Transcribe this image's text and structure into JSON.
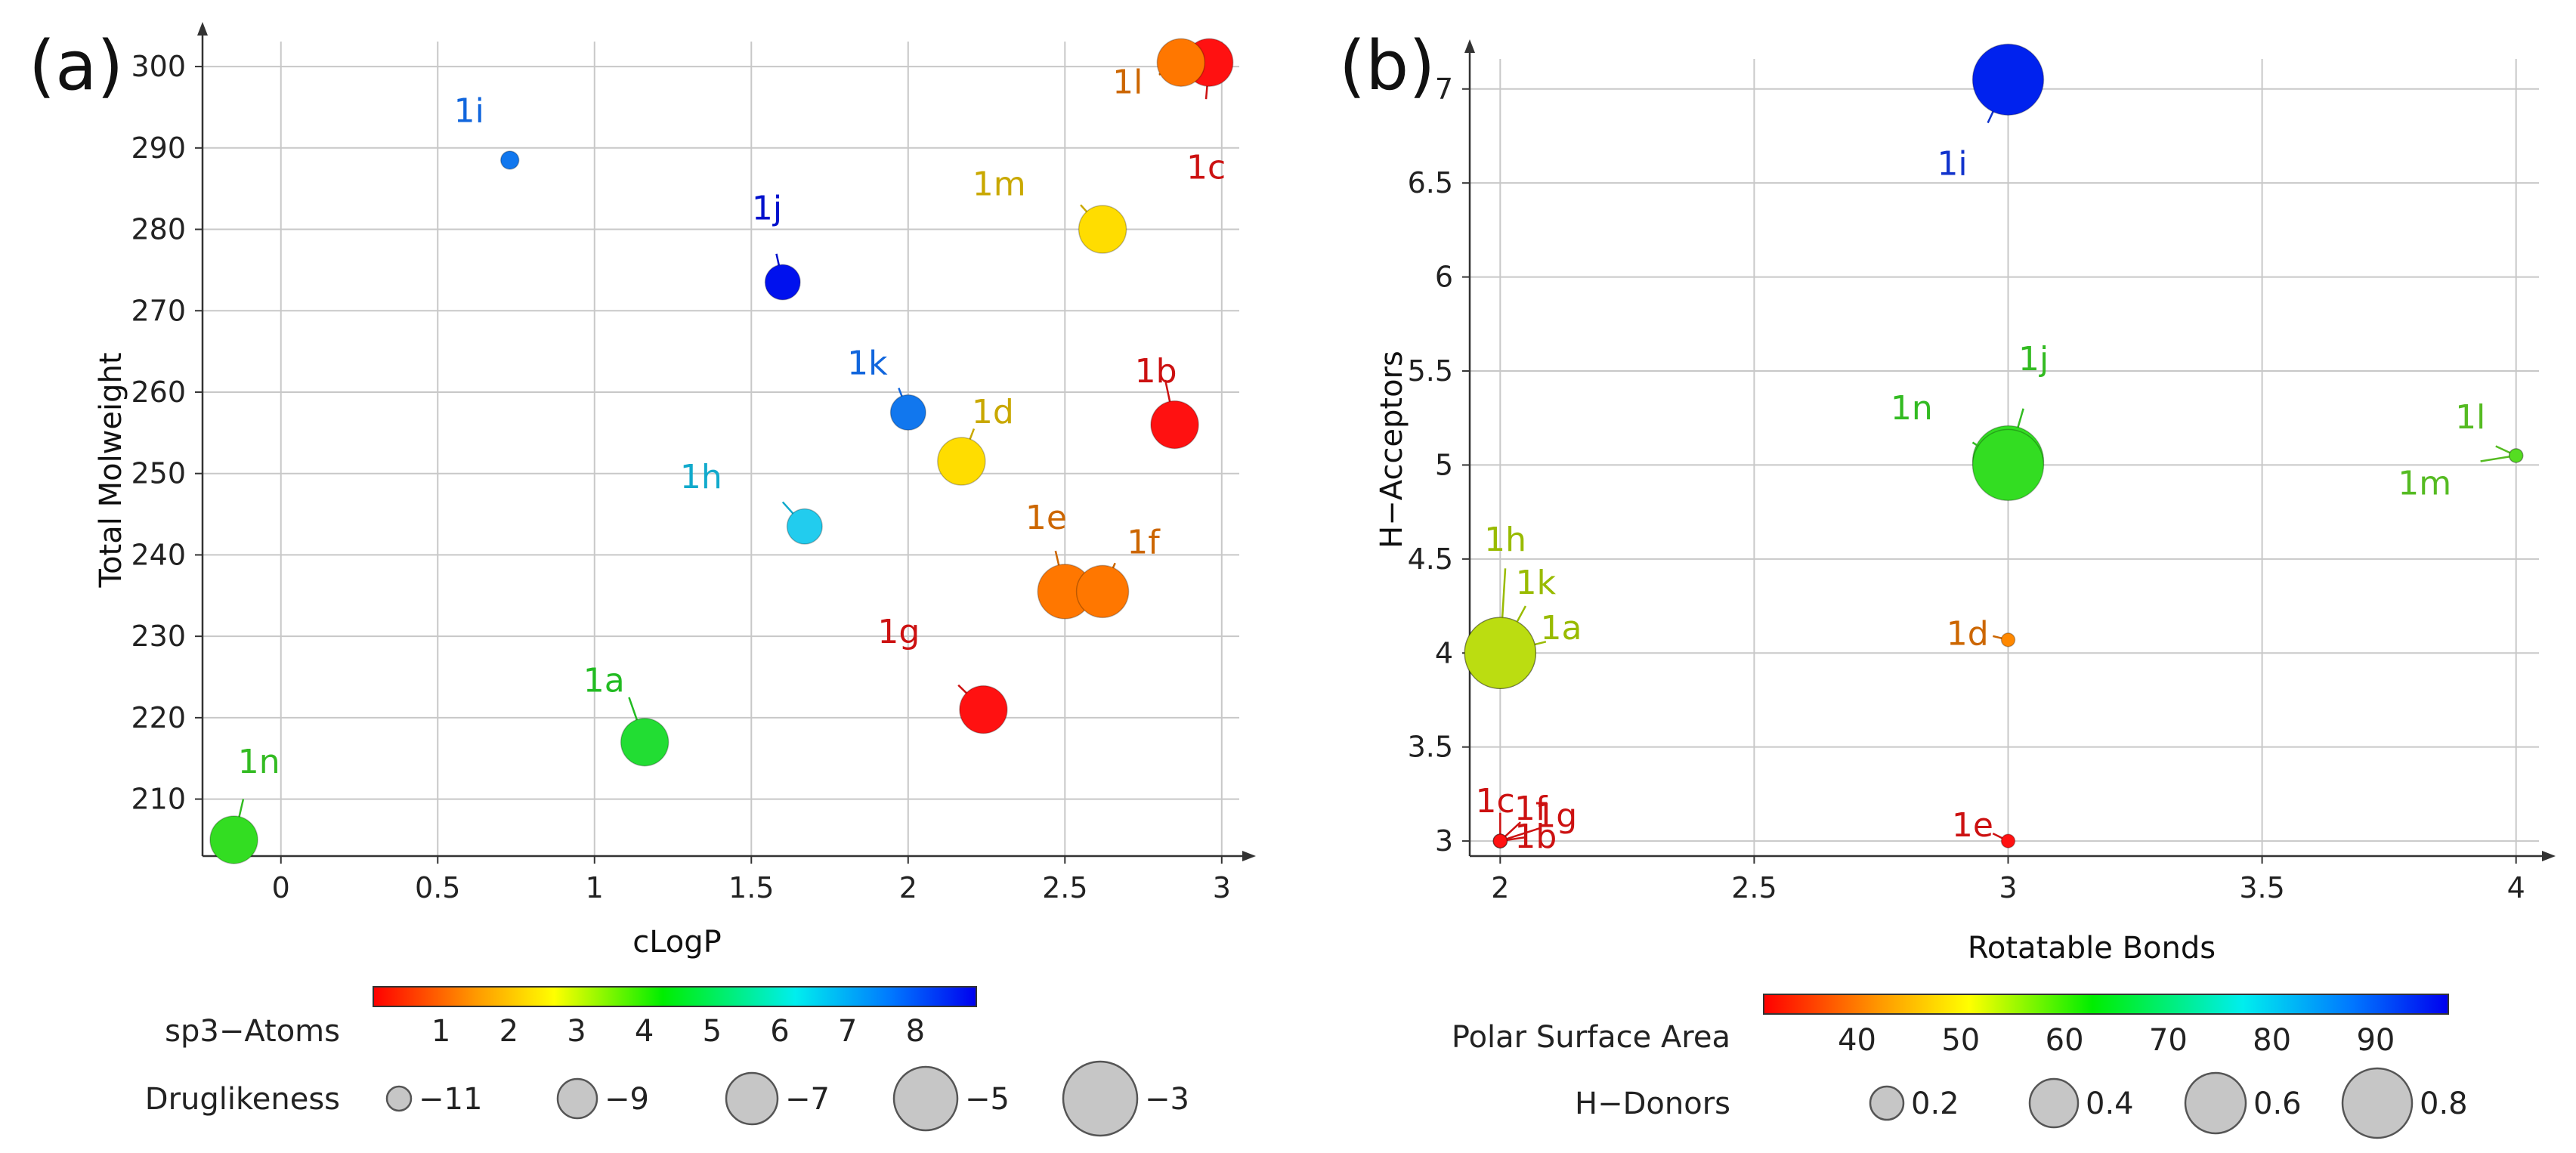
{
  "panels": [
    {
      "tag": "(a)",
      "chart_data": {
        "type": "scatter",
        "xlabel": "cLogP",
        "ylabel": "Total Molweight",
        "xlim": [
          -0.25,
          3.08
        ],
        "ylim": [
          203,
          304
        ],
        "xticks": [
          0,
          0.5,
          1,
          1.5,
          2,
          2.5,
          3
        ],
        "xtick_labels": [
          "0",
          "0.5",
          "1",
          "1.5",
          "2",
          "2.5",
          "3"
        ],
        "yticks": [
          210,
          220,
          230,
          240,
          250,
          260,
          270,
          280,
          290,
          300
        ],
        "ytick_labels": [
          "210",
          "220",
          "230",
          "240",
          "250",
          "260",
          "270",
          "280",
          "290",
          "300"
        ],
        "grid": true,
        "points": [
          {
            "label": "1a",
            "x": 1.16,
            "y": 217,
            "sp3": 3.9,
            "druglikeness": -5.8,
            "color": "#22dd33",
            "label_color": "#22bb22",
            "lx": 1.03,
            "ly": 224.5,
            "ax": 1.11,
            "ay": 222.5
          },
          {
            "label": "1b",
            "x": 2.85,
            "y": 256,
            "sp3": 1.0,
            "druglikeness": -5.8,
            "color": "#ff1111",
            "label_color": "#cc1111",
            "lx": 2.79,
            "ly": 262.5,
            "ax": 2.82,
            "ay": 261.5
          },
          {
            "label": "1c",
            "x": 2.96,
            "y": 300.5,
            "sp3": 1.0,
            "druglikeness": -5.8,
            "color": "#ff1111",
            "label_color": "#cc1111",
            "lx": 2.95,
            "ly": 287.5,
            "ax": 2.95,
            "ay": 296
          },
          {
            "label": "1d",
            "x": 2.17,
            "y": 251.5,
            "sp3": 2.6,
            "druglikeness": -5.8,
            "color": "#ffdd00",
            "label_color": "#c9a800",
            "lx": 2.27,
            "ly": 257.5,
            "ax": 2.21,
            "ay": 255.5
          },
          {
            "label": "1e",
            "x": 2.5,
            "y": 235.5,
            "sp3": 1.6,
            "druglikeness": -4.6,
            "color": "#ff7700",
            "label_color": "#cc6600",
            "lx": 2.44,
            "ly": 244.5,
            "ax": 2.47,
            "ay": 240.5
          },
          {
            "label": "1f",
            "x": 2.62,
            "y": 235.5,
            "sp3": 1.6,
            "druglikeness": -5.0,
            "color": "#ff7700",
            "label_color": "#cc6600",
            "lx": 2.75,
            "ly": 241.5,
            "ax": 2.66,
            "ay": 239
          },
          {
            "label": "1g",
            "x": 2.24,
            "y": 221,
            "sp3": 1.0,
            "druglikeness": -5.8,
            "color": "#ff1111",
            "label_color": "#cc1111",
            "lx": 1.97,
            "ly": 230.5,
            "ax": 2.16,
            "ay": 224
          },
          {
            "label": "1h",
            "x": 1.67,
            "y": 243.5,
            "sp3": 6.2,
            "druglikeness": -8.0,
            "color": "#22ccee",
            "label_color": "#11aacc",
            "lx": 1.34,
            "ly": 249.5,
            "ax": 1.6,
            "ay": 246.5
          },
          {
            "label": "1i",
            "x": 0.73,
            "y": 288.5,
            "sp3": 7.4,
            "druglikeness": -11.0,
            "color": "#1177ee",
            "label_color": "#1166dd",
            "lx": 0.6,
            "ly": 294.5,
            "ax": 0.72,
            "ay": 288.8
          },
          {
            "label": "1j",
            "x": 1.6,
            "y": 273.5,
            "sp3": 9.0,
            "druglikeness": -8.0,
            "color": "#0011ee",
            "label_color": "#0011cc",
            "lx": 1.55,
            "ly": 282.5,
            "ax": 1.58,
            "ay": 277
          },
          {
            "label": "1k",
            "x": 2.0,
            "y": 257.5,
            "sp3": 7.4,
            "druglikeness": -8.0,
            "color": "#1177ee",
            "label_color": "#1166dd",
            "lx": 1.87,
            "ly": 263.5,
            "ax": 1.97,
            "ay": 260.5
          },
          {
            "label": "1l",
            "x": 2.87,
            "y": 300.5,
            "sp3": 1.6,
            "druglikeness": -5.8,
            "color": "#ff7700",
            "label_color": "#cc6600",
            "lx": 2.7,
            "ly": 298,
            "ax": 2.8,
            "ay": 299
          },
          {
            "label": "1m",
            "x": 2.62,
            "y": 280,
            "sp3": 2.6,
            "druglikeness": -5.8,
            "color": "#ffdd00",
            "label_color": "#c9a800",
            "lx": 2.29,
            "ly": 285.5,
            "ax": 2.55,
            "ay": 283
          },
          {
            "label": "1n",
            "x": -0.15,
            "y": 205,
            "sp3": 3.9,
            "druglikeness": -5.8,
            "color": "#33dd22",
            "label_color": "#33bb22",
            "lx": -0.07,
            "ly": 214.5,
            "ax": -0.12,
            "ay": 210
          }
        ]
      }
    },
    {
      "tag": "(b)",
      "chart_data": {
        "type": "scatter",
        "xlabel": "Rotatable Bonds",
        "ylabel": "H−Acceptors",
        "xlim": [
          1.94,
          4.06
        ],
        "ylim": [
          2.92,
          7.2
        ],
        "xticks": [
          2,
          2.5,
          3,
          3.5,
          4
        ],
        "xtick_labels": [
          "2",
          "2.5",
          "3",
          "3.5",
          "4"
        ],
        "yticks": [
          3,
          3.5,
          4,
          4.5,
          5,
          5.5,
          6,
          6.5,
          7
        ],
        "ytick_labels": [
          "3",
          "3.5",
          "4",
          "4.5",
          "5",
          "5.5",
          "6",
          "6.5",
          "7"
        ],
        "grid": true,
        "points": [
          {
            "label": "1a",
            "x": 2.0,
            "y": 4.0,
            "psa": 52,
            "hdonors": 0.8,
            "color": "#ccee00",
            "label_color": "#99bb00",
            "lx": 2.12,
            "ly": 4.13,
            "ax": 2.09,
            "ay": 4.06
          },
          {
            "label": "1b",
            "x": 2.0,
            "y": 3.0,
            "psa": 33,
            "hdonors": 0.2,
            "color": "#ff1111",
            "label_color": "#cc1111",
            "lx": 2.07,
            "ly": 3.02,
            "ax": 2.05,
            "ay": 3.02
          },
          {
            "label": "1c",
            "x": 2.0,
            "y": 3.0,
            "psa": 33,
            "hdonors": 0.2,
            "color": "#ff1111",
            "label_color": "#cc1111",
            "lx": 1.99,
            "ly": 3.21,
            "ax": 2.0,
            "ay": 3.15
          },
          {
            "label": "1d",
            "x": 3.0,
            "y": 4.07,
            "psa": 38,
            "hdonors": 0.2,
            "color": "#ff8800",
            "label_color": "#cc6600",
            "lx": 2.92,
            "ly": 4.1,
            "ax": 2.97,
            "ay": 4.09
          },
          {
            "label": "1e",
            "x": 3.0,
            "y": 3.0,
            "psa": 33,
            "hdonors": 0.2,
            "color": "#ff1111",
            "label_color": "#cc1111",
            "lx": 2.93,
            "ly": 3.08,
            "ax": 2.97,
            "ay": 3.04
          },
          {
            "label": "1f",
            "x": 2.0,
            "y": 3.0,
            "psa": 33,
            "hdonors": 0.2,
            "color": "#ff1111",
            "label_color": "#cc1111",
            "lx": 2.06,
            "ly": 3.17,
            "ax": 2.04,
            "ay": 3.1
          },
          {
            "label": "1g",
            "x": 2.0,
            "y": 3.0,
            "psa": 33,
            "hdonors": 0.2,
            "color": "#ff1111",
            "label_color": "#cc1111",
            "lx": 2.11,
            "ly": 3.13,
            "ax": 2.08,
            "ay": 3.07
          },
          {
            "label": "1h",
            "x": 2.0,
            "y": 4.0,
            "psa": 52,
            "hdonors": 0.8,
            "color": "#aadd11",
            "label_color": "#99bb00",
            "lx": 2.01,
            "ly": 4.6,
            "ax": 2.01,
            "ay": 4.45
          },
          {
            "label": "1i",
            "x": 3.0,
            "y": 7.05,
            "psa": 93,
            "hdonors": 0.8,
            "color": "#0022ee",
            "label_color": "#1133cc",
            "lx": 2.89,
            "ly": 6.6,
            "ax": 2.96,
            "ay": 6.82
          },
          {
            "label": "1j",
            "x": 3.0,
            "y": 5.02,
            "psa": 62,
            "hdonors": 0.8,
            "color": "#33dd22",
            "label_color": "#33bb22",
            "lx": 3.05,
            "ly": 5.56,
            "ax": 3.03,
            "ay": 5.3
          },
          {
            "label": "1k",
            "x": 2.0,
            "y": 4.0,
            "psa": 52,
            "hdonors": 0.8,
            "color": "#bbdd11",
            "label_color": "#99bb00",
            "lx": 2.07,
            "ly": 4.37,
            "ax": 2.05,
            "ay": 4.25
          },
          {
            "label": "1l",
            "x": 4.0,
            "y": 5.05,
            "psa": 60,
            "hdonors": 0.2,
            "color": "#55dd22",
            "label_color": "#55bb22",
            "lx": 3.91,
            "ly": 5.25,
            "ax": 3.96,
            "ay": 5.1
          },
          {
            "label": "1m",
            "x": 4.0,
            "y": 5.05,
            "psa": 60,
            "hdonors": 0.2,
            "color": "#55dd22",
            "label_color": "#55bb22",
            "lx": 3.82,
            "ly": 4.9,
            "ax": 3.93,
            "ay": 5.02
          },
          {
            "label": "1n",
            "x": 3.0,
            "y": 5.0,
            "psa": 62,
            "hdonors": 0.8,
            "color": "#33dd22",
            "label_color": "#33bb22",
            "lx": 2.81,
            "ly": 5.3,
            "ax": 2.93,
            "ay": 5.12
          }
        ]
      }
    }
  ],
  "legend_a": {
    "color_title": "sp3−Atoms",
    "color_ticks": [
      "1",
      "2",
      "3",
      "4",
      "5",
      "6",
      "7",
      "8"
    ],
    "size_title": "Druglikeness",
    "size_labels": [
      "−11",
      "−9",
      "−7",
      "−5",
      "−3"
    ]
  },
  "legend_b": {
    "color_title": "Polar Surface Area",
    "color_ticks": [
      "40",
      "50",
      "60",
      "70",
      "80",
      "90"
    ],
    "size_title": "H−Donors",
    "size_labels": [
      "0.2",
      "0.4",
      "0.6",
      "0.8"
    ]
  }
}
